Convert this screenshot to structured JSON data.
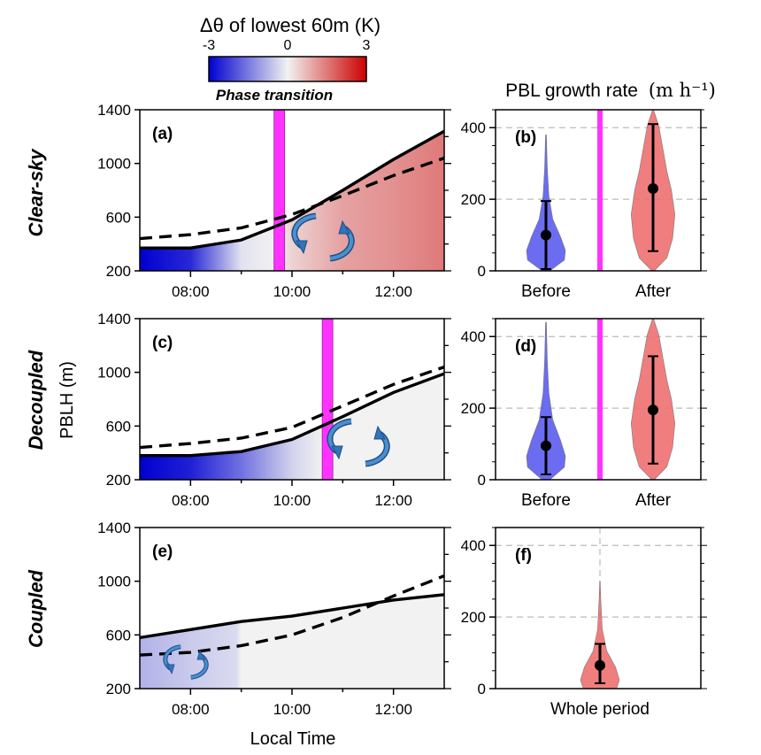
{
  "colorbar": {
    "title": "Δθ of lowest 60m (K)",
    "ticks": [
      "-3",
      "0",
      "3"
    ],
    "low_color": "#0000d0",
    "mid_color": "#f2f2f2",
    "high_color": "#cc0000"
  },
  "phase_label": "Phase transition",
  "phase_color": "#ff33ff",
  "rate_title": "PBL growth rate",
  "rate_unit": "(m h⁻¹)",
  "y_label": "PBLH (m)",
  "x_label": "Local Time",
  "row_labels": [
    "Clear-sky",
    "Decoupled",
    "Coupled"
  ],
  "chart_data": [
    {
      "type": "line",
      "panel": "(a)",
      "row": "Clear-sky",
      "x_ticks": [
        "08:00",
        "10:00",
        "12:00"
      ],
      "y_ticks": [
        200,
        600,
        1000,
        1400
      ],
      "xlim": [
        7.0,
        13.0
      ],
      "ylim": [
        200,
        1400
      ],
      "phase_transition_hour": 9.75,
      "pblh_solid": {
        "x": [
          7.0,
          8.0,
          9.0,
          10.0,
          11.0,
          12.0,
          13.0
        ],
        "y": [
          370,
          370,
          430,
          580,
          800,
          1030,
          1240
        ]
      },
      "pblh_dashed": {
        "x": [
          7.0,
          8.0,
          9.0,
          10.0,
          11.0,
          12.0,
          13.0
        ],
        "y": [
          440,
          470,
          520,
          620,
          760,
          910,
          1040
        ]
      },
      "delta_theta": {
        "x": [
          7.0,
          8.0,
          9.0,
          9.7,
          10.0,
          11.0,
          12.0,
          13.0
        ],
        "k": [
          -3.0,
          -2.5,
          -0.2,
          0.0,
          0.4,
          1.0,
          1.2,
          1.5
        ]
      },
      "circulation": "yes"
    },
    {
      "type": "violin",
      "panel": "(b)",
      "categories": [
        "Before",
        "After"
      ],
      "y_ticks": [
        0,
        200,
        400
      ],
      "ylim": [
        0,
        450
      ],
      "median": [
        100,
        230
      ],
      "range": [
        [
          5,
          195
        ],
        [
          55,
          410
        ]
      ],
      "extent": [
        [
          0,
          380
        ],
        [
          0,
          450
        ]
      ],
      "colors": [
        "#5c5cf0",
        "#f07070"
      ],
      "phase_divider": true
    },
    {
      "type": "line",
      "panel": "(c)",
      "row": "Decoupled",
      "x_ticks": [
        "08:00",
        "10:00",
        "12:00"
      ],
      "y_ticks": [
        200,
        600,
        1000,
        1400
      ],
      "xlim": [
        7.0,
        13.0
      ],
      "ylim": [
        200,
        1400
      ],
      "phase_transition_hour": 10.7,
      "pblh_solid": {
        "x": [
          7.0,
          8.0,
          9.0,
          10.0,
          11.0,
          12.0,
          13.0
        ],
        "y": [
          380,
          380,
          410,
          500,
          670,
          850,
          990
        ]
      },
      "pblh_dashed": {
        "x": [
          7.0,
          8.0,
          9.0,
          10.0,
          11.0,
          12.0,
          13.0
        ],
        "y": [
          440,
          470,
          510,
          590,
          750,
          910,
          1040
        ]
      },
      "delta_theta": {
        "x": [
          7.0,
          8.0,
          9.0,
          10.0,
          10.6,
          11.0,
          12.0,
          13.0
        ],
        "k": [
          -3.0,
          -2.6,
          -1.6,
          -0.4,
          0.0,
          0.0,
          0.0,
          0.0
        ]
      },
      "circulation": "yes"
    },
    {
      "type": "violin",
      "panel": "(d)",
      "categories": [
        "Before",
        "After"
      ],
      "y_ticks": [
        0,
        200,
        400
      ],
      "ylim": [
        0,
        450
      ],
      "median": [
        95,
        195
      ],
      "range": [
        [
          15,
          175
        ],
        [
          45,
          345
        ]
      ],
      "extent": [
        [
          0,
          440
        ],
        [
          0,
          450
        ]
      ],
      "colors": [
        "#5c5cf0",
        "#f07070"
      ],
      "phase_divider": true
    },
    {
      "type": "line",
      "panel": "(e)",
      "row": "Coupled",
      "x_ticks": [
        "08:00",
        "10:00",
        "12:00"
      ],
      "y_ticks": [
        200,
        600,
        1000,
        1400
      ],
      "xlim": [
        7.0,
        13.0
      ],
      "ylim": [
        200,
        1400
      ],
      "pblh_solid": {
        "x": [
          7.0,
          8.0,
          9.0,
          10.0,
          11.0,
          12.0,
          13.0
        ],
        "y": [
          580,
          640,
          700,
          740,
          800,
          860,
          900
        ]
      },
      "pblh_dashed": {
        "x": [
          7.0,
          8.0,
          9.0,
          10.0,
          11.0,
          12.0,
          13.0
        ],
        "y": [
          450,
          470,
          520,
          600,
          730,
          890,
          1040
        ]
      },
      "delta_theta": {
        "x": [
          7.0,
          8.0,
          8.9,
          9.0,
          13.0
        ],
        "k": [
          -0.8,
          -0.5,
          -0.3,
          0.0,
          0.0
        ]
      },
      "circulation": "yes"
    },
    {
      "type": "violin",
      "panel": "(f)",
      "categories": [
        "Whole period"
      ],
      "y_ticks": [
        0,
        200,
        400
      ],
      "ylim": [
        0,
        450
      ],
      "median": [
        65
      ],
      "range": [
        [
          15,
          125
        ]
      ],
      "extent": [
        [
          0,
          300
        ]
      ],
      "colors": [
        "#f07070"
      ],
      "phase_divider": false
    }
  ]
}
